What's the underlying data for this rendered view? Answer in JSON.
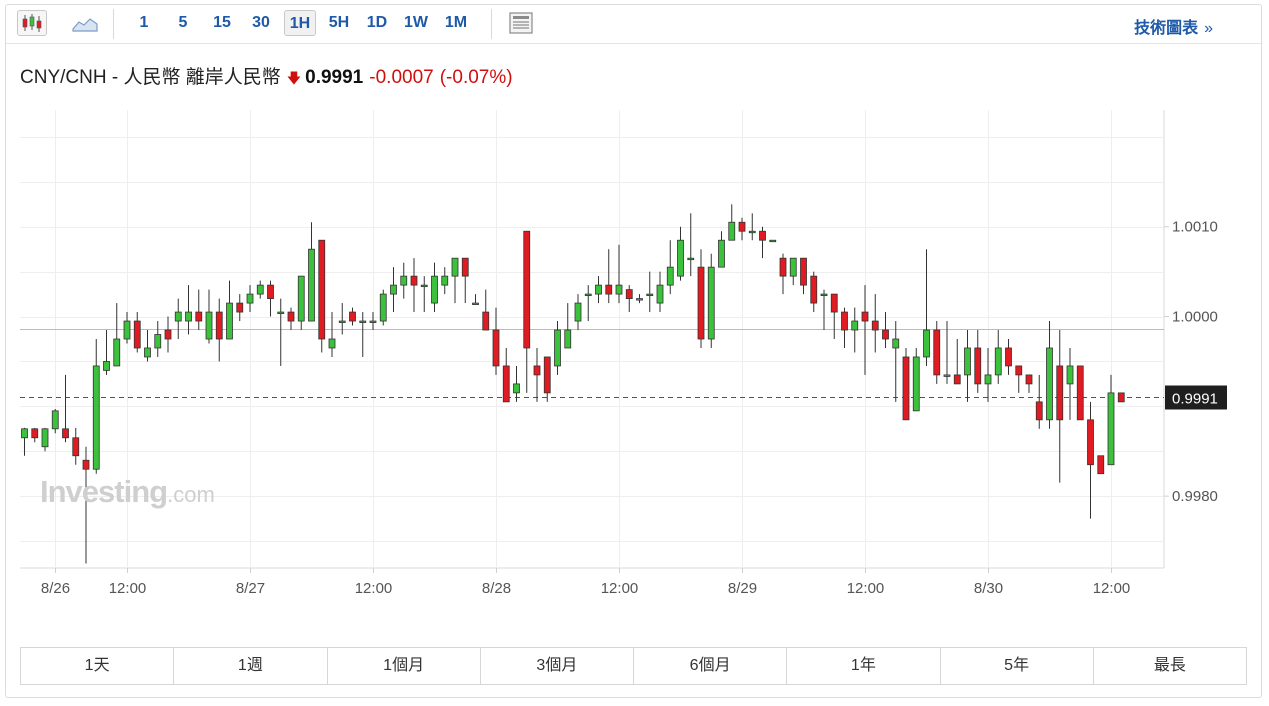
{
  "toolbar": {
    "intervals": [
      "1",
      "5",
      "15",
      "30",
      "1H",
      "5H",
      "1D",
      "1W",
      "1M"
    ],
    "selected_interval": "1H",
    "chart_style_icons": [
      "candlestick-icon",
      "area-chart-icon"
    ],
    "advanced_label": "技術圖表",
    "advanced_chevron": "»"
  },
  "header": {
    "pair": "CNY/CNH - 人民幣 離岸人民幣",
    "direction_icon": "down-arrow-icon",
    "price": "0.9991",
    "change": "-0.0007",
    "change_pct": "(-0.07%)",
    "down_color": "#d10e0e"
  },
  "watermark": {
    "brand": "Investing",
    "suffix": ".com"
  },
  "colors": {
    "up": "#3cc13c",
    "down": "#e01b22",
    "wick": "#333333",
    "ref_line": "#f2a3a3",
    "last_price_tag": "#1f1f1f"
  },
  "chart_data": {
    "type": "candlestick",
    "ylim": [
      0.9972,
      1.0023
    ],
    "y_ticks": [
      1.001,
      1.0,
      0.998
    ],
    "y_tick_labels": [
      "1.0010",
      "1.0000",
      "0.9980"
    ],
    "x_ticks": [
      {
        "index": 3,
        "label": "8/26"
      },
      {
        "index": 10,
        "label": "12:00"
      },
      {
        "index": 22,
        "label": "8/27"
      },
      {
        "index": 34,
        "label": "12:00"
      },
      {
        "index": 46,
        "label": "8/28"
      },
      {
        "index": 58,
        "label": "12:00"
      },
      {
        "index": 70,
        "label": "8/29"
      },
      {
        "index": 82,
        "label": "12:00"
      },
      {
        "index": 94,
        "label": "8/30"
      },
      {
        "index": 106,
        "label": "12:00"
      }
    ],
    "reference_line": 0.99986,
    "last_price": 0.9991,
    "last_price_label": "0.9991",
    "candles": [
      [
        0.99865,
        0.99875,
        0.99876,
        0.99845
      ],
      [
        0.99875,
        0.99865,
        0.99876,
        0.9986
      ],
      [
        0.99855,
        0.99875,
        0.99876,
        0.9985
      ],
      [
        0.99875,
        0.99895,
        0.99897,
        0.9987
      ],
      [
        0.99875,
        0.99865,
        0.99935,
        0.9986
      ],
      [
        0.99865,
        0.99845,
        0.99876,
        0.99835
      ],
      [
        0.9984,
        0.9983,
        0.99855,
        0.99725
      ],
      [
        0.9983,
        0.99945,
        0.99975,
        0.99825
      ],
      [
        0.9994,
        0.9995,
        0.99985,
        0.99935
      ],
      [
        0.99945,
        0.99975,
        1.00015,
        0.99945
      ],
      [
        0.99975,
        0.99995,
        1.00005,
        0.9997
      ],
      [
        0.99995,
        0.99965,
        1.00005,
        0.9996
      ],
      [
        0.99955,
        0.99965,
        0.99985,
        0.9995
      ],
      [
        0.99965,
        0.9998,
        0.99995,
        0.99955
      ],
      [
        0.99985,
        0.99975,
        1.0,
        0.9996
      ],
      [
        0.99995,
        1.00005,
        1.0002,
        0.99975
      ],
      [
        0.99995,
        1.00005,
        1.00035,
        0.9998
      ],
      [
        1.00005,
        0.99995,
        1.0003,
        0.99985
      ],
      [
        0.99975,
        1.00005,
        1.0003,
        0.9997
      ],
      [
        1.00005,
        0.99975,
        1.0002,
        0.9995
      ],
      [
        0.99975,
        1.00015,
        1.0004,
        0.99975
      ],
      [
        1.00015,
        1.00005,
        1.00025,
        0.99995
      ],
      [
        1.00015,
        1.00025,
        1.00035,
        1.00005
      ],
      [
        1.00025,
        1.00035,
        1.0004,
        1.0002
      ],
      [
        1.00035,
        1.0002,
        1.0004,
        1.0
      ],
      [
        1.00005,
        1.00005,
        1.0002,
        0.99945
      ],
      [
        1.00005,
        0.99995,
        1.0001,
        0.99985
      ],
      [
        0.99995,
        1.00045,
        1.00045,
        0.99985
      ],
      [
        0.99995,
        1.00075,
        1.00105,
        0.99995
      ],
      [
        1.00085,
        0.99975,
        1.00085,
        0.9996
      ],
      [
        0.99965,
        0.99975,
        1.00005,
        0.99955
      ],
      [
        0.99995,
        0.99995,
        1.00015,
        0.9998
      ],
      [
        1.00005,
        0.99995,
        1.0001,
        0.9999
      ],
      [
        0.99995,
        0.99995,
        1.00005,
        0.99955
      ],
      [
        0.99995,
        0.99995,
        1.00005,
        0.99985
      ],
      [
        0.99995,
        1.00025,
        1.0003,
        0.9999
      ],
      [
        1.00025,
        1.00035,
        1.00055,
        1.00005
      ],
      [
        1.00035,
        1.00045,
        1.0006,
        1.0002
      ],
      [
        1.00045,
        1.00035,
        1.00065,
        1.00005
      ],
      [
        1.00035,
        1.00035,
        1.00045,
        1.00005
      ],
      [
        1.00015,
        1.00045,
        1.0006,
        1.00005
      ],
      [
        1.00035,
        1.00045,
        1.00055,
        1.00025
      ],
      [
        1.00045,
        1.00065,
        1.00065,
        1.00015
      ],
      [
        1.00065,
        1.00045,
        1.00065,
        1.00015
      ],
      [
        1.00015,
        1.00015,
        1.00025,
        1.00015
      ],
      [
        1.00005,
        0.99985,
        1.0003,
        0.99985
      ],
      [
        0.99985,
        0.99945,
        1.0001,
        0.99935
      ],
      [
        0.99945,
        0.99905,
        0.99965,
        0.99905
      ],
      [
        0.99915,
        0.99925,
        0.99945,
        0.99905
      ],
      [
        1.00095,
        0.99965,
        1.00095,
        0.99915
      ],
      [
        0.99945,
        0.99935,
        0.99965,
        0.99905
      ],
      [
        0.99955,
        0.99915,
        0.99955,
        0.99905
      ],
      [
        0.99945,
        0.99985,
        0.99995,
        0.99935
      ],
      [
        0.99965,
        0.99985,
        1.00015,
        0.99965
      ],
      [
        0.99995,
        1.00015,
        1.00025,
        0.99985
      ],
      [
        1.00025,
        1.00025,
        1.00035,
        0.99995
      ],
      [
        1.00025,
        1.00035,
        1.00045,
        1.00015
      ],
      [
        1.00035,
        1.00025,
        1.00075,
        1.00015
      ],
      [
        1.00025,
        1.00035,
        1.0008,
        1.00015
      ],
      [
        1.0003,
        1.0002,
        1.00035,
        1.00005
      ],
      [
        1.0002,
        1.0002,
        1.00025,
        1.00015
      ],
      [
        1.00025,
        1.00025,
        1.0005,
        1.00005
      ],
      [
        1.00015,
        1.00035,
        1.0005,
        1.00005
      ],
      [
        1.00035,
        1.00055,
        1.00085,
        1.00025
      ],
      [
        1.00045,
        1.00085,
        1.001,
        1.0004
      ],
      [
        1.00065,
        1.00065,
        1.00115,
        1.00045
      ],
      [
        1.00055,
        0.99975,
        1.00075,
        0.99965
      ],
      [
        0.99975,
        1.00055,
        1.0007,
        0.99965
      ],
      [
        1.00055,
        1.00085,
        1.00095,
        1.00055
      ],
      [
        1.00085,
        1.00105,
        1.00125,
        1.00085
      ],
      [
        1.00105,
        1.00095,
        1.0011,
        1.00085
      ],
      [
        1.00095,
        1.00095,
        1.00115,
        1.00085
      ],
      [
        1.00095,
        1.00085,
        1.001,
        1.00065
      ],
      [
        1.00085,
        1.00085,
        1.00085,
        1.00085
      ],
      [
        1.00065,
        1.00045,
        1.0007,
        1.00025
      ],
      [
        1.00045,
        1.00065,
        1.00065,
        1.00035
      ],
      [
        1.00065,
        1.00035,
        1.00065,
        1.00025
      ],
      [
        1.00045,
        1.00015,
        1.0005,
        1.00005
      ],
      [
        1.00025,
        1.00025,
        1.0003,
        0.99985
      ],
      [
        1.00025,
        1.00005,
        1.00025,
        0.99975
      ],
      [
        1.00005,
        0.99985,
        1.0001,
        0.99965
      ],
      [
        0.99985,
        0.99995,
        1.0001,
        0.9996
      ],
      [
        1.00005,
        0.99995,
        1.00035,
        0.99935
      ],
      [
        0.99995,
        0.99985,
        1.00025,
        0.9996
      ],
      [
        0.99985,
        0.99975,
        1.00005,
        0.99965
      ],
      [
        0.99965,
        0.99975,
        0.99995,
        0.99905
      ],
      [
        0.99955,
        0.99885,
        0.99965,
        0.99885
      ],
      [
        0.99895,
        0.99955,
        0.99965,
        0.99895
      ],
      [
        0.99955,
        0.99985,
        1.00075,
        0.99945
      ],
      [
        0.99985,
        0.99935,
        0.99995,
        0.99925
      ],
      [
        0.99935,
        0.99935,
        0.99995,
        0.99925
      ],
      [
        0.99935,
        0.99925,
        0.99975,
        0.99925
      ],
      [
        0.99935,
        0.99965,
        0.99985,
        0.99905
      ],
      [
        0.99965,
        0.99925,
        0.99985,
        0.99915
      ],
      [
        0.99925,
        0.99935,
        0.99965,
        0.99905
      ],
      [
        0.99935,
        0.99965,
        0.99985,
        0.99925
      ],
      [
        0.99965,
        0.99945,
        0.99975,
        0.99935
      ],
      [
        0.99945,
        0.99935,
        0.99945,
        0.99915
      ],
      [
        0.99935,
        0.99925,
        0.99935,
        0.99915
      ],
      [
        0.99905,
        0.99885,
        0.99935,
        0.99875
      ],
      [
        0.99885,
        0.99965,
        0.99995,
        0.99875
      ],
      [
        0.99945,
        0.99885,
        0.99985,
        0.99815
      ],
      [
        0.99925,
        0.99945,
        0.99965,
        0.99885
      ],
      [
        0.99945,
        0.99885,
        0.99945,
        0.99885
      ],
      [
        0.99885,
        0.99835,
        0.99905,
        0.99775
      ],
      [
        0.99845,
        0.99825,
        0.99845,
        0.99825
      ],
      [
        0.99835,
        0.99915,
        0.99935,
        0.99835
      ],
      [
        0.99915,
        0.99905,
        0.99915,
        0.99905
      ]
    ]
  },
  "range_tabs": [
    "1天",
    "1週",
    "1個月",
    "3個月",
    "6個月",
    "1年",
    "5年",
    "最長"
  ]
}
